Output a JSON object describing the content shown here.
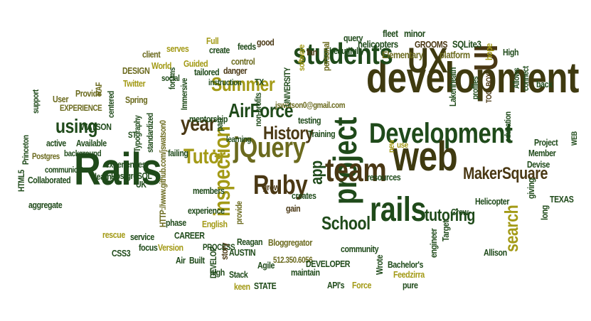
{
  "palette": {
    "dark_green": "#1f4a1a",
    "olive": "#6b6a1e",
    "brown": "#4a3814",
    "mustard": "#a39a16",
    "dark_olive": "#3f3a10"
  },
  "words": [
    "development",
    "Development",
    "web",
    "Rails",
    "project",
    "students",
    "UX",
    "UI",
    "rails",
    "team",
    "jQuery",
    "Ruby",
    "AirForce",
    "History",
    "Summer",
    "inspection",
    "Tutor",
    "year",
    "MakerSquare",
    "search",
    "School",
    "tutoring",
    "app",
    "using",
    "jswatson0@gmail.com",
    "512.350.6056",
    "HTTP://www.github.com/jswatson0",
    "Elementary",
    "platform",
    "helicopters",
    "GROOMS",
    "SQLite3",
    "fleet",
    "minor",
    "High",
    "hope",
    "beautifully",
    "query",
    "personal",
    "fan",
    "software",
    "UNIVERSITY",
    "non-profits",
    "control",
    "danger",
    "feeds",
    "good",
    "create",
    "serves",
    "client",
    "Full",
    "Guided",
    "World",
    "DESIGN",
    "tailored",
    "social",
    "Immersive",
    "instruction",
    "TX",
    "Twitter",
    "Spring",
    "centered",
    "RAF",
    "Provide",
    "User",
    "support",
    "EXPERIENCE",
    "WATSON",
    "Typography",
    "standardized",
    "mentorship",
    "part",
    "testing",
    "Training",
    "learning",
    "new",
    "use",
    "ST",
    "Princeton",
    "active",
    "Available",
    "Postgres",
    "background",
    "communicator",
    "experiences",
    "HTML5",
    "Collaborated",
    "learn",
    "PostgreSQL",
    "UK",
    "aggregate",
    "failing",
    "members",
    "grow",
    "creates",
    "gain",
    "provide",
    "experience",
    "phase",
    "CAREER",
    "English",
    "rescue",
    "service",
    "focus",
    "Version",
    "CSS3",
    "Air",
    "Built",
    "PROCESS",
    "DEVELOP",
    "forums",
    "story",
    "Reagan",
    "Bloggregator",
    "AUSTIN",
    "Stack",
    "Agile",
    "high",
    "keen",
    "STATE",
    "maintain",
    "DEVELOPER",
    "API's",
    "Force",
    "Wrote",
    "Bachelor's",
    "Feedzirra",
    "pure",
    "community",
    "engineer",
    "Target",
    "Allison",
    "Crew",
    "Helicopter",
    "resources",
    "Lakenheath",
    "profiles",
    "TOOLBOX",
    "education",
    "Allows",
    "connect",
    "back",
    "WEB",
    "Project",
    "Member",
    "Devise",
    "giving",
    "long",
    "TEXAS"
  ]
}
